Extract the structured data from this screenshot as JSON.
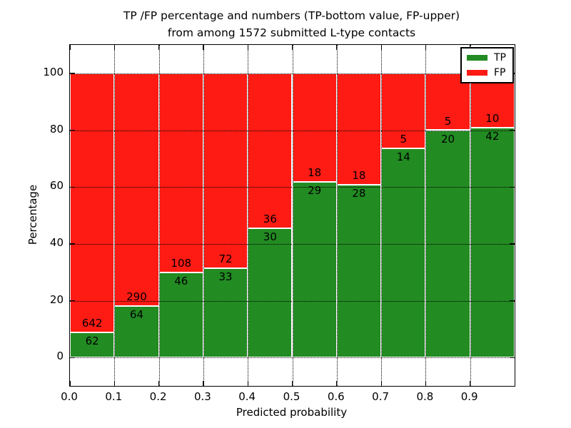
{
  "title": {
    "line1": "TP /FP percentage and numbers (TP-bottom value, FP-upper)",
    "line2": "from among 1572 submitted L-type contacts"
  },
  "axes": {
    "xlabel": "Predicted probability",
    "ylabel": "Percentage",
    "x_tick_labels": [
      "0.0",
      "0.1",
      "0.2",
      "0.3",
      "0.4",
      "0.5",
      "0.6",
      "0.7",
      "0.8",
      "0.9"
    ],
    "x_tick_values": [
      0.0,
      0.1,
      0.2,
      0.3,
      0.4,
      0.5,
      0.6,
      0.7,
      0.8,
      0.9
    ],
    "y_tick_labels": [
      "0",
      "20",
      "40",
      "60",
      "80",
      "100"
    ],
    "y_tick_values": [
      0,
      20,
      40,
      60,
      80,
      100
    ],
    "xlim": [
      0.0,
      1.0
    ],
    "ylim": [
      -10,
      110
    ],
    "grid": "dotted black, both axes, drawn above bars"
  },
  "legend": {
    "position": "upper right",
    "entries": [
      {
        "label": "TP",
        "color": "#228b22"
      },
      {
        "label": "FP",
        "color": "#fd1b14"
      }
    ]
  },
  "chart_data": {
    "type": "bar",
    "stacked": true,
    "title": "TP /FP percentage and numbers (TP-bottom value, FP-upper) from among 1572 submitted L-type contacts",
    "xlabel": "Predicted probability",
    "ylabel": "Percentage",
    "total_contacts": 1572,
    "categories": [
      "0.0-0.1",
      "0.1-0.2",
      "0.2-0.3",
      "0.3-0.4",
      "0.4-0.5",
      "0.5-0.6",
      "0.6-0.7",
      "0.7-0.8",
      "0.8-0.9",
      "0.9-1.0"
    ],
    "bin_width": 0.1,
    "series": [
      {
        "name": "TP",
        "color": "#228b22",
        "counts": [
          62,
          64,
          46,
          33,
          30,
          29,
          28,
          14,
          20,
          42
        ],
        "percent": [
          8.8,
          18.1,
          29.9,
          31.4,
          45.5,
          61.7,
          60.9,
          73.7,
          80.0,
          80.8
        ]
      },
      {
        "name": "FP",
        "color": "#fd1b14",
        "counts": [
          642,
          290,
          108,
          72,
          36,
          18,
          18,
          5,
          5,
          10
        ],
        "percent": [
          91.2,
          81.9,
          70.1,
          68.6,
          54.5,
          38.3,
          39.1,
          26.3,
          20.0,
          19.2
        ]
      }
    ],
    "bar_edge_color": "#ffffff",
    "ylim": [
      -10,
      110
    ],
    "xlim": [
      0.0,
      1.0
    ],
    "note": "Each bar totals 100%; TP count printed below the split line, FP count above it"
  }
}
